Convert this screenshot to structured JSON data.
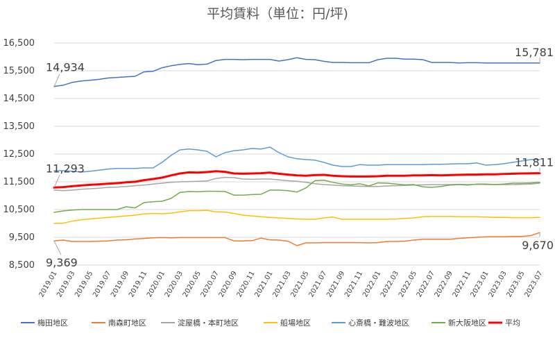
{
  "chart_data": {
    "type": "line",
    "title": "平均賃料（単位：円/坪)",
    "ylim": [
      8500,
      16500
    ],
    "yticks": [
      "16,500",
      "15,500",
      "14,500",
      "13,500",
      "12,500",
      "11,500",
      "10,500",
      "9,500",
      "8,500"
    ],
    "ytick_values": [
      16500,
      15500,
      14500,
      13500,
      12500,
      11500,
      10500,
      9500,
      8500
    ],
    "grid": true,
    "legend_position": "bottom",
    "x": [
      "2019.01",
      "2019.02",
      "2019.03",
      "2019.04",
      "2019.05",
      "2019.06",
      "2019.07",
      "2019.08",
      "2019.09",
      "2019.10",
      "2019.11",
      "2019.12",
      "2020.01",
      "2020.02",
      "2020.03",
      "2020.04",
      "2020.05",
      "2020.06",
      "2020.07",
      "2020.08",
      "2020.09",
      "2020.10",
      "2020.11",
      "2020.12",
      "2021.01",
      "2021.02",
      "2021.03",
      "2021.04",
      "2021.05",
      "2021.06",
      "2021.07",
      "2021.08",
      "2021.09",
      "2021.10",
      "2021.11",
      "2021.12",
      "2022.01",
      "2022.02",
      "2022.03",
      "2022.04",
      "2022.05",
      "2022.06",
      "2022.07",
      "2022.08",
      "2022.09",
      "2022.10",
      "2022.11",
      "2022.12",
      "2023.01",
      "2023.02",
      "2023.03",
      "2023.04",
      "2023.05",
      "2023.06",
      "2023.07"
    ],
    "xtick_labels": [
      "2019.01",
      "2019.03",
      "2019.05",
      "2019.07",
      "2019.09",
      "2019.11",
      "2020.01",
      "2020.03",
      "2020.05",
      "2020.07",
      "2020.09",
      "2020.11",
      "2021.01",
      "2021.03",
      "2021.05",
      "2021.07",
      "2021.09",
      "2021.11",
      "2022.01",
      "2022.03",
      "2022.05",
      "2022.07",
      "2022.09",
      "2022.11",
      "2023.01",
      "2023.03",
      "2023.05",
      "2023.07"
    ],
    "series": [
      {
        "name": "梅田地区",
        "color": "#4472c4",
        "width": 1.5,
        "values": [
          14934,
          14980,
          15080,
          15130,
          15160,
          15190,
          15240,
          15260,
          15280,
          15300,
          15460,
          15480,
          15610,
          15680,
          15730,
          15760,
          15720,
          15740,
          15870,
          15910,
          15910,
          15900,
          15910,
          15910,
          15910,
          15850,
          15900,
          15970,
          15910,
          15900,
          15840,
          15800,
          15800,
          15790,
          15790,
          15790,
          15900,
          15950,
          15950,
          15920,
          15920,
          15900,
          15800,
          15800,
          15800,
          15780,
          15790,
          15790,
          15780,
          15780,
          15780,
          15780,
          15781,
          15781,
          15781
        ]
      },
      {
        "name": "南森町地区",
        "color": "#ed7d31",
        "width": 1.5,
        "values": [
          9369,
          9400,
          9350,
          9350,
          9350,
          9360,
          9370,
          9400,
          9410,
          9440,
          9460,
          9480,
          9490,
          9480,
          9490,
          9490,
          9490,
          9490,
          9490,
          9490,
          9370,
          9370,
          9380,
          9470,
          9410,
          9400,
          9360,
          9200,
          9300,
          9300,
          9310,
          9310,
          9310,
          9310,
          9310,
          9300,
          9310,
          9350,
          9350,
          9360,
          9400,
          9430,
          9430,
          9430,
          9430,
          9460,
          9480,
          9500,
          9520,
          9520,
          9520,
          9530,
          9530,
          9560,
          9670
        ]
      },
      {
        "name": "淀屋橋・本町地区",
        "color": "#a5a5a5",
        "width": 1.5,
        "values": [
          11200,
          11180,
          11200,
          11230,
          11250,
          11270,
          11300,
          11310,
          11330,
          11360,
          11380,
          11420,
          11450,
          11480,
          11500,
          11510,
          11520,
          11530,
          11620,
          11660,
          11650,
          11600,
          11590,
          11600,
          11600,
          11570,
          11540,
          11520,
          11480,
          11430,
          11400,
          11380,
          11360,
          11350,
          11340,
          11330,
          11330,
          11350,
          11360,
          11370,
          11380,
          11390,
          11400,
          11400,
          11400,
          11410,
          11400,
          11410,
          11400,
          11400,
          11400,
          11400,
          11410,
          11420,
          11450
        ]
      },
      {
        "name": "船場地区",
        "color": "#ffc000",
        "width": 1.5,
        "values": [
          10000,
          10010,
          10080,
          10130,
          10160,
          10190,
          10220,
          10240,
          10270,
          10300,
          10340,
          10360,
          10350,
          10370,
          10420,
          10460,
          10460,
          10470,
          10420,
          10410,
          10360,
          10300,
          10270,
          10240,
          10220,
          10200,
          10180,
          10160,
          10150,
          10150,
          10200,
          10230,
          10150,
          10150,
          10150,
          10150,
          10150,
          10150,
          10160,
          10180,
          10200,
          10240,
          10250,
          10250,
          10250,
          10240,
          10240,
          10240,
          10230,
          10220,
          10220,
          10210,
          10210,
          10210,
          10220
        ]
      },
      {
        "name": "心斎橋・難波地区",
        "color": "#5b9bd5",
        "width": 1.5,
        "values": [
          11900,
          11900,
          11880,
          11850,
          11880,
          11920,
          11960,
          11980,
          11980,
          11980,
          12000,
          12000,
          12200,
          12450,
          12650,
          12680,
          12650,
          12600,
          12400,
          12550,
          12620,
          12650,
          12700,
          12680,
          12750,
          12550,
          12400,
          12330,
          12300,
          12280,
          12200,
          12100,
          12050,
          12050,
          12120,
          12100,
          12100,
          12120,
          12120,
          12120,
          12120,
          12120,
          12130,
          12130,
          12140,
          12150,
          12150,
          12180,
          12100,
          12120,
          12150,
          12200,
          12250,
          12300,
          12300
        ]
      },
      {
        "name": "新大阪地区",
        "color": "#70ad47",
        "width": 1.5,
        "values": [
          10400,
          10450,
          10480,
          10500,
          10500,
          10500,
          10500,
          10500,
          10600,
          10560,
          10750,
          10780,
          10800,
          10900,
          11120,
          11150,
          11140,
          11160,
          11160,
          11150,
          11020,
          11020,
          11040,
          11050,
          11200,
          11200,
          11180,
          11130,
          11280,
          11540,
          11560,
          11480,
          11420,
          11390,
          11430,
          11350,
          11460,
          11450,
          11420,
          11390,
          11400,
          11320,
          11300,
          11330,
          11380,
          11400,
          11380,
          11420,
          11420,
          11400,
          11420,
          11450,
          11450,
          11460,
          11480
        ]
      },
      {
        "name": "平均",
        "color": "#ff0000",
        "width": 3,
        "values": [
          11293,
          11310,
          11340,
          11370,
          11390,
          11410,
          11430,
          11450,
          11480,
          11500,
          11560,
          11600,
          11650,
          11730,
          11800,
          11840,
          11830,
          11850,
          11880,
          11860,
          11800,
          11790,
          11800,
          11810,
          11830,
          11790,
          11760,
          11730,
          11720,
          11740,
          11750,
          11720,
          11700,
          11690,
          11690,
          11690,
          11700,
          11720,
          11720,
          11720,
          11730,
          11730,
          11740,
          11730,
          11740,
          11750,
          11760,
          11760,
          11770,
          11770,
          11780,
          11790,
          11800,
          11805,
          11811
        ]
      }
    ],
    "annotations": [
      {
        "text": "14,934",
        "series": 0,
        "index": 0,
        "placement": "above-right"
      },
      {
        "text": "15,781",
        "series": 0,
        "index": 54,
        "placement": "above-left"
      },
      {
        "text": "11,293",
        "series": 6,
        "index": 0,
        "placement": "above-right"
      },
      {
        "text": "11,811",
        "series": 6,
        "index": 54,
        "placement": "above-left"
      },
      {
        "text": "9,369",
        "series": 1,
        "index": 0,
        "placement": "below-right"
      },
      {
        "text": "9,670",
        "series": 1,
        "index": 54,
        "placement": "below-left"
      }
    ]
  }
}
